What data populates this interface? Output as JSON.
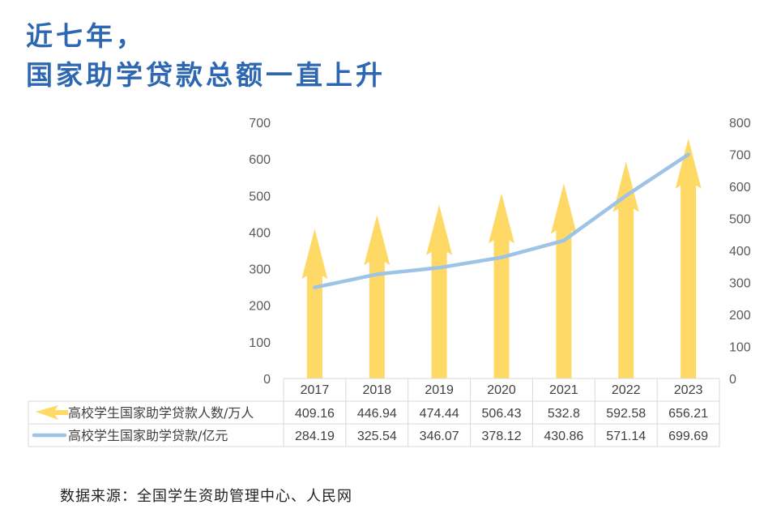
{
  "title": {
    "line1": "近七年，",
    "line2": "国家助学贷款总额一直上升"
  },
  "source": "数据来源：全国学生资助管理中心、人民网",
  "colors": {
    "title": "#2e67b1",
    "arrow": "#ffd966",
    "line": "#9dc3e6",
    "grid": "#d9d9d9"
  },
  "chart_data": {
    "type": "bar",
    "categories": [
      "2017",
      "2018",
      "2019",
      "2020",
      "2021",
      "2022",
      "2023"
    ],
    "series": [
      {
        "name": "高校学生国家助学贷款人数/万人",
        "type": "bar",
        "axis": "left",
        "values": [
          409.16,
          446.94,
          474.44,
          506.43,
          532.8,
          592.58,
          656.21
        ],
        "labels": [
          "409.16",
          "446.94",
          "474.44",
          "506.43",
          "532.8",
          "592.58",
          "656.21"
        ]
      },
      {
        "name": "高校学生国家助学贷款/亿元",
        "type": "line",
        "axis": "right",
        "values": [
          284.19,
          325.54,
          346.07,
          378.12,
          430.86,
          571.14,
          699.69
        ],
        "labels": [
          "284.19",
          "325.54",
          "346.07",
          "378.12",
          "430.86",
          "571.14",
          "699.69"
        ]
      }
    ],
    "y_left": {
      "min": 0,
      "max": 700,
      "ticks": [
        "0",
        "100",
        "200",
        "300",
        "400",
        "500",
        "600",
        "700"
      ]
    },
    "y_right": {
      "min": 0,
      "max": 800,
      "ticks": [
        "0",
        "100",
        "200",
        "300",
        "400",
        "500",
        "600",
        "700",
        "800"
      ]
    },
    "grid": false,
    "legend": "data-table"
  }
}
